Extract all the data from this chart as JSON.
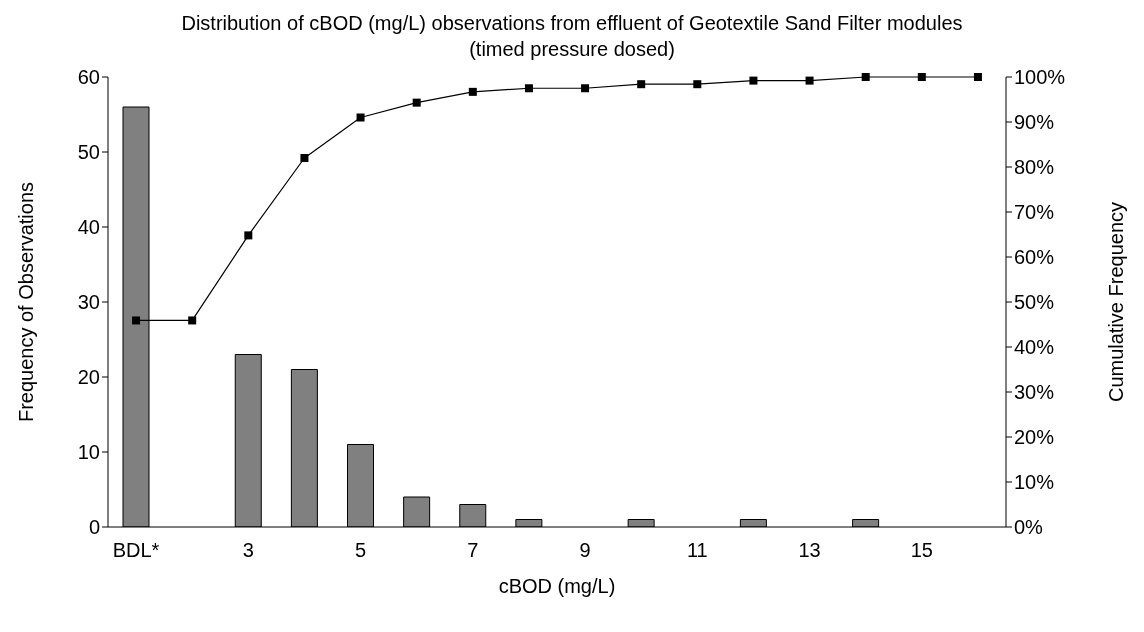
{
  "chart_data": {
    "type": "bar",
    "title": "Distribution of cBOD (mg/L) observations from effluent of Geotextile Sand Filter modules (timed pressure dosed)",
    "xlabel": "cBOD (mg/L)",
    "ylabel": "Frequency of Observations",
    "y2label": "Cumulative Frequency",
    "categories": [
      "BDL*",
      null,
      "3",
      null,
      "5",
      null,
      "7",
      null,
      "9",
      null,
      "11",
      null,
      "13",
      null,
      "15",
      null
    ],
    "series": [
      {
        "color": "#808080",
        "values": [
          56,
          0,
          23,
          21,
          11,
          4,
          3,
          1,
          0,
          1,
          0,
          1,
          0,
          1,
          0,
          0
        ]
      },
      {
        "type": "line",
        "axis": "y2",
        "color": "#000000",
        "marker": "square",
        "values": [
          45.9,
          45.9,
          64.8,
          82.0,
          91.0,
          94.3,
          96.7,
          97.5,
          97.5,
          98.4,
          98.4,
          99.2,
          99.2,
          100,
          100,
          100
        ]
      }
    ],
    "ylim": [
      0,
      60
    ],
    "yticks": [
      0,
      10,
      20,
      30,
      40,
      50,
      60
    ],
    "y2lim": [
      0,
      100
    ],
    "y2ticks": [
      {
        "value": 0,
        "label": "0%"
      },
      {
        "value": 10,
        "label": "10%"
      },
      {
        "value": 20,
        "label": "20%"
      },
      {
        "value": 30,
        "label": "30%"
      },
      {
        "value": 40,
        "label": "40%"
      },
      {
        "value": 50,
        "label": "50%"
      },
      {
        "value": 60,
        "label": "60%"
      },
      {
        "value": 70,
        "label": "70%"
      },
      {
        "value": 80,
        "label": "80%"
      },
      {
        "value": 90,
        "label": "90%"
      },
      {
        "value": 100,
        "label": "100%"
      }
    ],
    "grid": false,
    "legend": false
  }
}
